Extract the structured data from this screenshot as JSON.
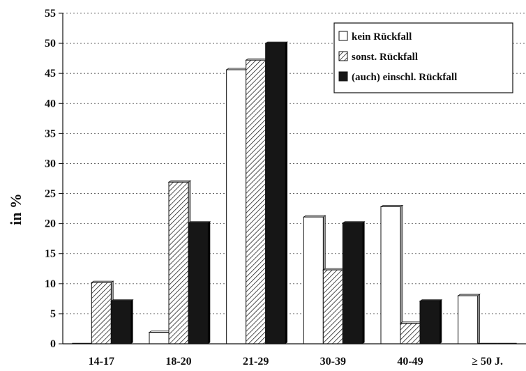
{
  "chart_data": {
    "type": "bar",
    "title": "",
    "xlabel": "",
    "ylabel": "in %",
    "categories": [
      "14-17",
      "18-20",
      "21-29",
      "30-39",
      "40-49",
      "≥ 50 J."
    ],
    "series": [
      {
        "name": "kein Rückfall",
        "values": [
          0,
          1.9,
          45.6,
          21.1,
          22.8,
          8.0
        ],
        "color": "#ffffff"
      },
      {
        "name": "sonst. Rückfall",
        "values": [
          10.2,
          26.9,
          47.2,
          12.3,
          3.4,
          0
        ],
        "color": "#ffffff",
        "pattern": "hatch"
      },
      {
        "name": "(auch) einschl. Rückfall",
        "values": [
          7.1,
          20.1,
          50.0,
          20.1,
          7.1,
          0
        ],
        "color": "#111111"
      }
    ],
    "ylim": [
      0,
      55
    ],
    "yticks": [
      0,
      5,
      10,
      15,
      20,
      25,
      30,
      35,
      40,
      45,
      50,
      55
    ],
    "grid": true,
    "legend_position": "top-right"
  }
}
